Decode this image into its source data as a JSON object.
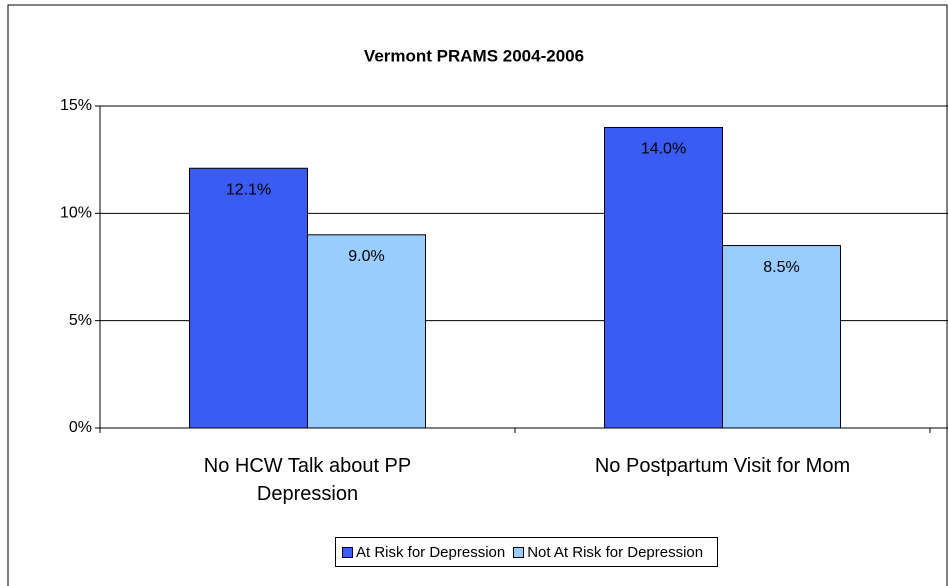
{
  "chart_data": {
    "type": "bar",
    "title": "Vermont PRAMS 2004-2006",
    "categories": [
      "No HCW Talk about PP Depression",
      "No Postpartum Visit for Mom"
    ],
    "series": [
      {
        "name": "At Risk for Depression",
        "color": "#3a5cf5",
        "values": [
          12.1,
          14.0
        ],
        "value_labels": [
          "12.1%",
          "14.0%"
        ]
      },
      {
        "name": "Not At Risk for Depression",
        "color": "#99ccff",
        "values": [
          9.0,
          8.5
        ],
        "value_labels": [
          "9.0%",
          "8.5%"
        ]
      }
    ],
    "ylim": [
      0,
      15
    ],
    "yticks": [
      {
        "value": 0,
        "label": "0%"
      },
      {
        "value": 5,
        "label": "5%"
      },
      {
        "value": 10,
        "label": "10%"
      },
      {
        "value": 15,
        "label": "15%"
      }
    ],
    "grid": true,
    "legend": "bottom"
  }
}
